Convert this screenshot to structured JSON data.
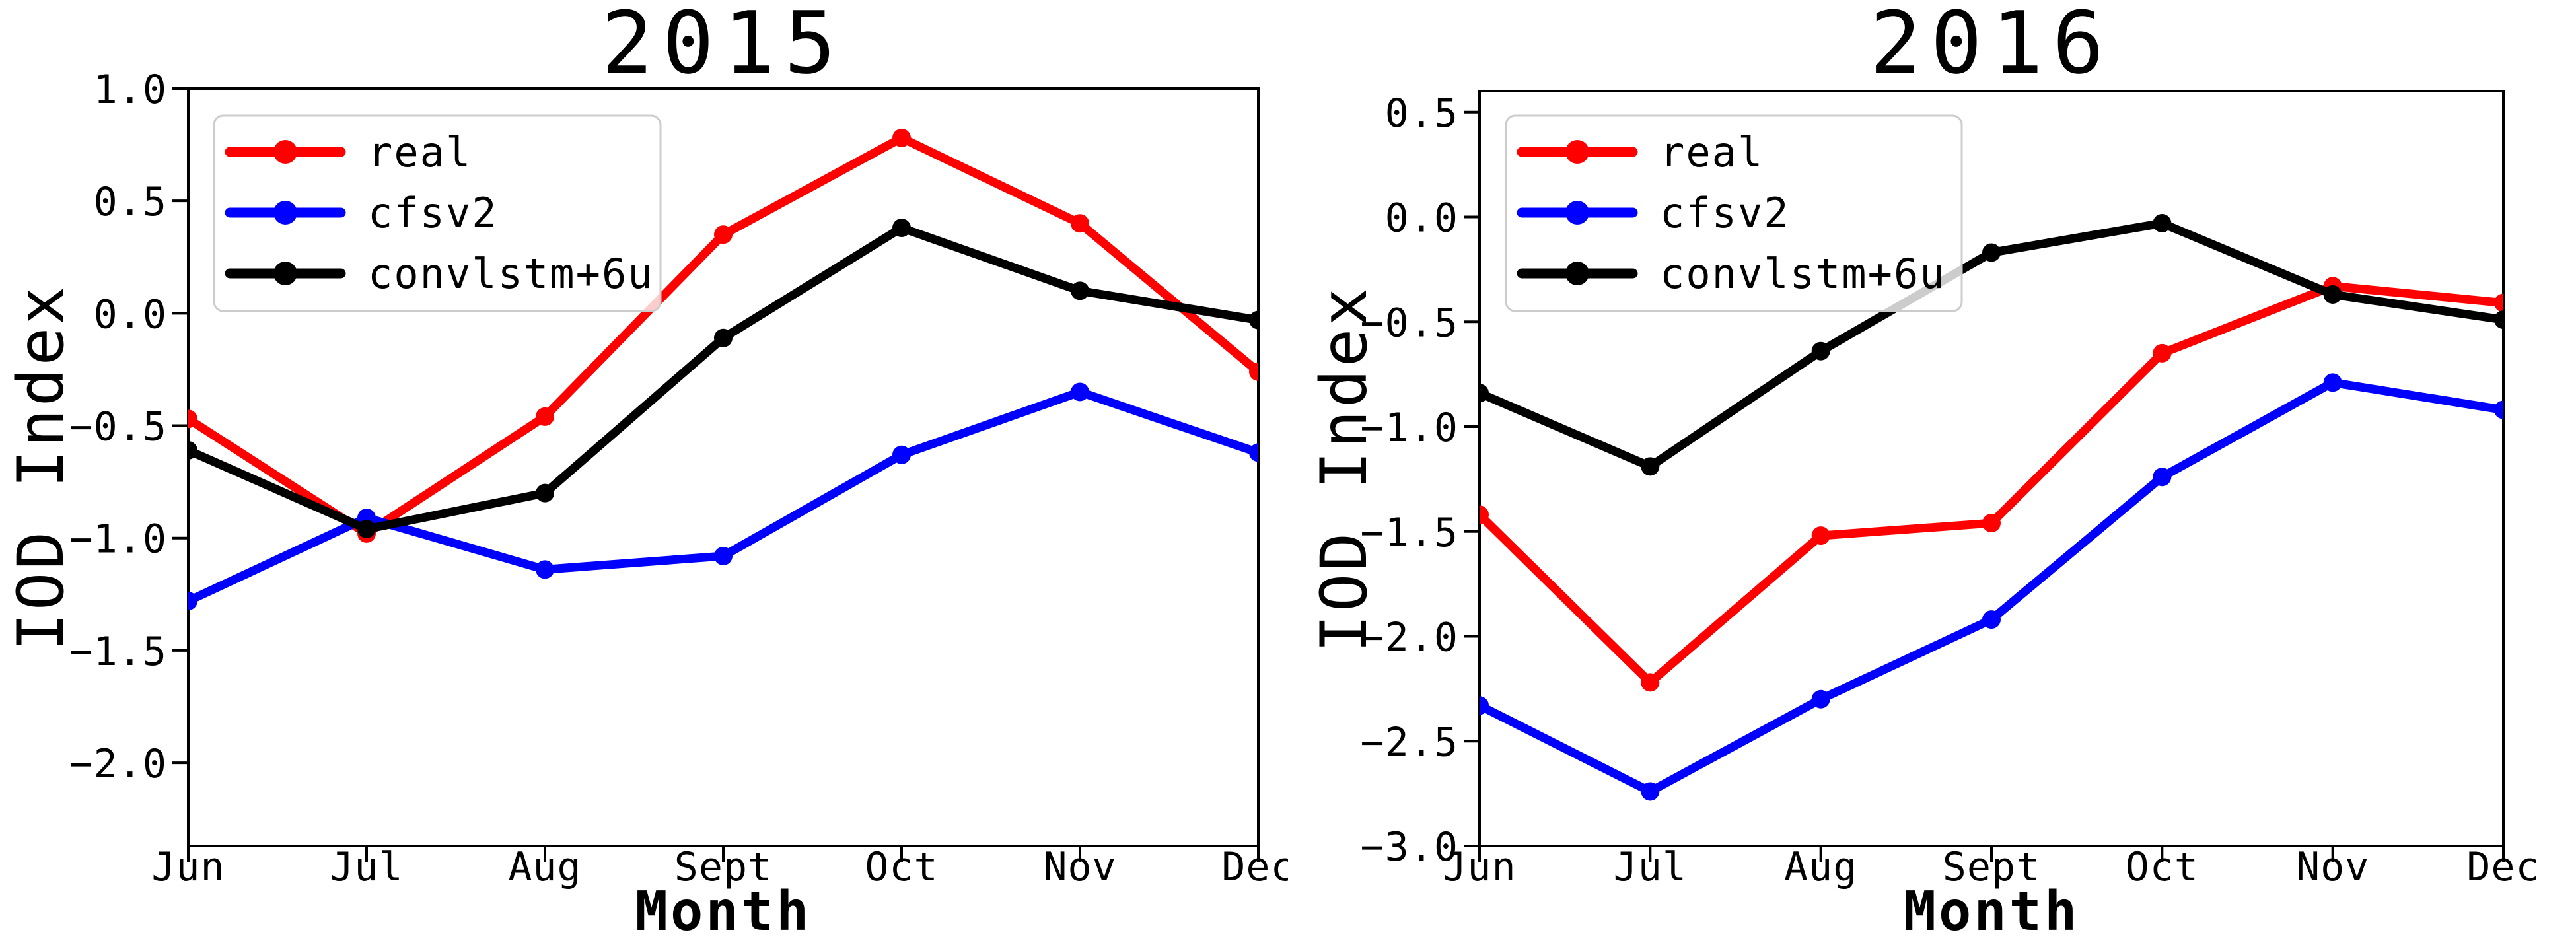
{
  "figure": {
    "background": "#ffffff"
  },
  "chart_data": [
    {
      "type": "line",
      "title": "2015",
      "xlabel": "Month",
      "ylabel": "IOD Index",
      "categories": [
        "Jun",
        "Jul",
        "Aug",
        "Sept",
        "Oct",
        "Nov",
        "Dec"
      ],
      "ylim": [
        -2.37,
        1.0
      ],
      "yticks": [
        1.0,
        0.5,
        0.0,
        -0.5,
        -1.0,
        -1.5,
        -2.0
      ],
      "ytick_labels": [
        "1.0",
        "0.5",
        "0.0",
        "−0.5",
        "−1.0",
        "−1.5",
        "−2.0"
      ],
      "grid": false,
      "legend_position": "upper left",
      "series": [
        {
          "name": "real",
          "color": "#ff0000",
          "values": [
            -0.47,
            -0.98,
            -0.46,
            0.35,
            0.78,
            0.4,
            -0.26
          ]
        },
        {
          "name": "cfsv2",
          "color": "#0000ff",
          "values": [
            -1.28,
            -0.91,
            -1.14,
            -1.08,
            -0.63,
            -0.35,
            -0.62
          ]
        },
        {
          "name": "convlstm+6u",
          "color": "#000000",
          "values": [
            -0.61,
            -0.96,
            -0.8,
            -0.11,
            0.38,
            0.1,
            -0.03
          ]
        }
      ]
    },
    {
      "type": "line",
      "title": "2016",
      "xlabel": "Month",
      "ylabel": "IOD Index",
      "categories": [
        "Jun",
        "Jul",
        "Aug",
        "Sept",
        "Oct",
        "Nov",
        "Dec"
      ],
      "ylim": [
        -3.0,
        0.6
      ],
      "yticks": [
        0.5,
        0.0,
        -0.5,
        -1.0,
        -1.5,
        -2.0,
        -2.5,
        -3.0
      ],
      "ytick_labels": [
        "0.5",
        "0.0",
        "−0.5",
        "−1.0",
        "−1.5",
        "−2.0",
        "−2.5",
        "−3.0"
      ],
      "grid": false,
      "legend_position": "upper left",
      "series": [
        {
          "name": "real",
          "color": "#ff0000",
          "values": [
            -1.42,
            -2.22,
            -1.52,
            -1.46,
            -0.65,
            -0.33,
            -0.41
          ]
        },
        {
          "name": "cfsv2",
          "color": "#0000ff",
          "values": [
            -2.33,
            -2.74,
            -2.3,
            -1.92,
            -1.24,
            -0.79,
            -0.92
          ]
        },
        {
          "name": "convlstm+6u",
          "color": "#000000",
          "values": [
            -0.84,
            -1.19,
            -0.64,
            -0.17,
            -0.03,
            -0.37,
            -0.49
          ]
        }
      ]
    }
  ]
}
